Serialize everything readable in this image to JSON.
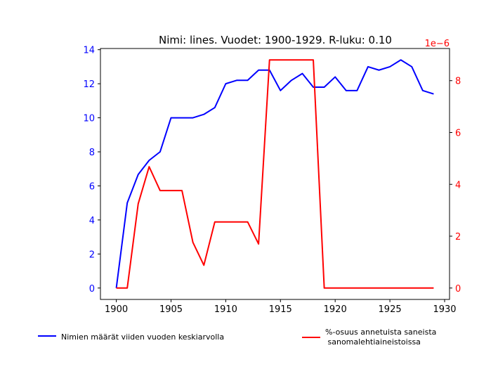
{
  "chart_data": {
    "type": "line",
    "title": "Nimi: lines. Vuodet: 1900-1929. R-luku: 0.10",
    "x": [
      1900,
      1901,
      1902,
      1903,
      1904,
      1905,
      1906,
      1907,
      1908,
      1909,
      1910,
      1911,
      1912,
      1913,
      1914,
      1915,
      1916,
      1917,
      1918,
      1919,
      1920,
      1921,
      1922,
      1923,
      1924,
      1925,
      1926,
      1927,
      1928,
      1929
    ],
    "xlim": [
      1898.55,
      1930.45
    ],
    "xticks": [
      1900,
      1905,
      1910,
      1915,
      1920,
      1925,
      1930
    ],
    "left_axis": {
      "ylim": [
        -0.67,
        14.07
      ],
      "ticks": [
        0,
        2,
        4,
        6,
        8,
        10,
        12,
        14
      ],
      "color": "#0000ff"
    },
    "right_axis": {
      "ylim": [
        -0.44,
        9.24
      ],
      "ticks": [
        0,
        2,
        4,
        6,
        8
      ],
      "scale_label": "1e−6",
      "color": "#ff0000"
    },
    "series": [
      {
        "name": "Nimien määrät viiden vuoden keskiarvolla",
        "axis": "left",
        "color": "#0000ff",
        "values": [
          0,
          5.0,
          6.67,
          7.5,
          8.0,
          10.0,
          10.0,
          10.0,
          10.2,
          10.6,
          12.0,
          12.2,
          12.2,
          12.8,
          12.8,
          11.6,
          12.2,
          12.6,
          11.8,
          11.8,
          12.4,
          11.6,
          11.6,
          13.0,
          12.8,
          13.0,
          13.4,
          13.0,
          11.6,
          11.4
        ]
      },
      {
        "name": "%-osuus annetuista saneista\n sanomalehtiaineistoissa",
        "axis": "right",
        "color": "#ff0000",
        "values": [
          0,
          0,
          3.25,
          4.68,
          3.76,
          3.76,
          3.76,
          1.76,
          0.88,
          2.55,
          2.55,
          2.55,
          2.55,
          1.7,
          8.8,
          8.8,
          8.8,
          8.8,
          8.8,
          0,
          0,
          0,
          0,
          0,
          0,
          0,
          0,
          0,
          0,
          0
        ]
      }
    ],
    "grid": false,
    "legend_placement": "bottom"
  }
}
